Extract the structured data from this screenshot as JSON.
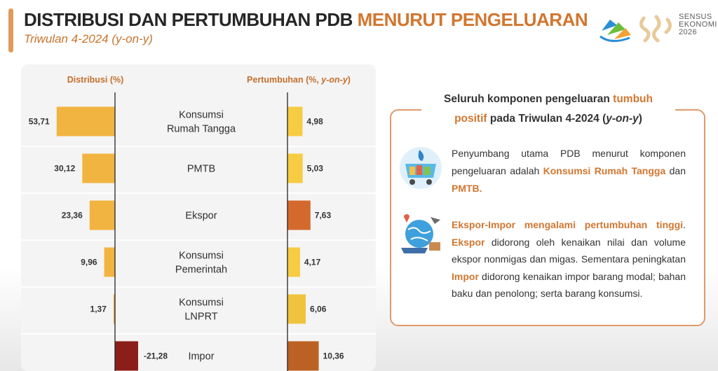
{
  "header": {
    "title_main": "DISTRIBUSI DAN PERTUMBUHAN PDB",
    "title_highlight": "MENURUT PENGELUARAN",
    "subtitle": "Triwulan 4-2024 (y-on-y)"
  },
  "logo": {
    "line1": "SENSUS",
    "line2": "EKONOMI",
    "line3": "2026"
  },
  "chart_data": {
    "type": "bar",
    "categories": [
      "Konsumsi Rumah Tangga",
      "PMTB",
      "Ekspor",
      "Konsumsi Pemerintah",
      "Konsumsi LNPRT",
      "Impor"
    ],
    "category_lines": [
      [
        "Konsumsi",
        "Rumah Tangga"
      ],
      [
        "PMTB"
      ],
      [
        "Ekspor"
      ],
      [
        "Konsumsi",
        "Pemerintah"
      ],
      [
        "Konsumsi",
        "LNPRT"
      ],
      [
        "Impor"
      ]
    ],
    "series": [
      {
        "name": "Distribusi (%)",
        "values": [
          53.71,
          30.12,
          23.36,
          9.96,
          1.37,
          -21.28
        ],
        "labels": [
          "53,71",
          "30,12",
          "23,36",
          "9,96",
          "1,37",
          "-21,28"
        ],
        "colors": [
          "#f2b441",
          "#f2b441",
          "#f2b441",
          "#f2b441",
          "#f2b441",
          "#8c1e19"
        ]
      },
      {
        "name": "Pertumbuhan (%, y-on-y)",
        "values": [
          4.98,
          5.03,
          7.63,
          4.17,
          6.06,
          10.36
        ],
        "labels": [
          "4,98",
          "5,03",
          "7,63",
          "4,17",
          "6,06",
          "10,36"
        ],
        "colors": [
          "#f7cb42",
          "#f7cb42",
          "#d4692d",
          "#f7cb42",
          "#f0c33e",
          "#bc6124"
        ]
      }
    ],
    "header_left": "Distribusi (%)",
    "header_right_prefix": "Pertumbuhan (%, ",
    "header_right_italic": "y-on-y",
    "header_right_suffix": ")",
    "grid": false
  },
  "info": {
    "heading_part1": "Seluruh komponen pengeluaran ",
    "heading_hl1": "tumbuh",
    "heading_hl2": "positif",
    "heading_part2": " pada Triwulan 4-2024 (",
    "heading_italic": "y-on-y",
    "heading_part3": ")",
    "p1_a": "Penyumbang utama PDB menurut komponen pengeluaran adalah ",
    "p1_hl1": "Konsumsi Rumah Tangga",
    "p1_b": " dan ",
    "p1_hl2": "PMTB.",
    "p2_hl1": "Ekspor-Impor mengalami pertumbuhan tinggi",
    "p2_a": ". ",
    "p2_hl2": "Ekspor",
    "p2_b": " didorong oleh kenaikan nilai dan volume ekspor nonmigas dan migas. Sementara peningkatan ",
    "p2_hl3": "Impor",
    "p2_c": " didorong kenaikan impor barang modal; bahan baku dan penolong; serta barang konsumsi.",
    "icon1": "shopping-cart-icon",
    "icon2": "global-trade-icon"
  }
}
